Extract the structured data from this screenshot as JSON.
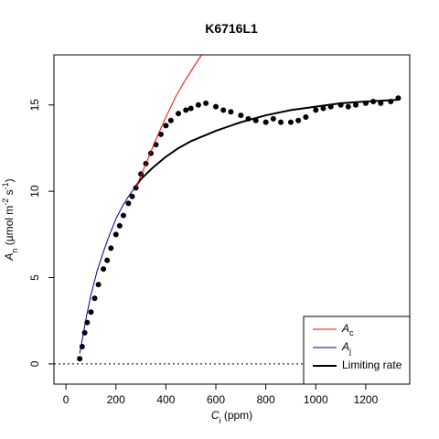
{
  "chart_data": {
    "type": "scatter",
    "title": "K6716L1",
    "xlabel_parts": [
      "C",
      "i",
      " (ppm)"
    ],
    "ylabel_parts": [
      "A",
      "n",
      " (µmol m",
      "-2",
      " s",
      "-1",
      ")"
    ],
    "xlim": [
      -48,
      1376
    ],
    "ylim": [
      -1.17,
      17.9
    ],
    "xticks": [
      0,
      200,
      400,
      600,
      800,
      1000,
      1200
    ],
    "yticks": [
      0,
      5,
      10,
      15
    ],
    "hline": 0,
    "legend": "bottom-right",
    "points": {
      "color": "#000000",
      "x": [
        55,
        65,
        75,
        85,
        100,
        115,
        130,
        150,
        165,
        180,
        200,
        215,
        230,
        250,
        265,
        280,
        300,
        320,
        340,
        360,
        380,
        400,
        420,
        450,
        480,
        500,
        530,
        560,
        600,
        630,
        660,
        700,
        730,
        760,
        800,
        830,
        860,
        900,
        930,
        960,
        1000,
        1030,
        1060,
        1100,
        1130,
        1160,
        1200,
        1230,
        1260,
        1300,
        1330
      ],
      "y": [
        0.3,
        1.0,
        1.8,
        2.4,
        3.0,
        3.8,
        4.6,
        5.5,
        6.0,
        6.7,
        7.5,
        8.0,
        8.6,
        9.3,
        9.7,
        10.2,
        11.0,
        11.6,
        12.2,
        12.7,
        13.3,
        13.8,
        14.1,
        14.5,
        14.7,
        14.8,
        15.0,
        15.1,
        14.9,
        14.7,
        14.6,
        14.4,
        14.2,
        14.1,
        14.0,
        14.2,
        14.0,
        14.0,
        14.1,
        14.3,
        14.7,
        14.8,
        14.9,
        15.0,
        14.9,
        15.0,
        15.1,
        15.2,
        15.1,
        15.2,
        15.4
      ]
    },
    "series": [
      {
        "name": "A",
        "subscript": "c",
        "color": "#ff0000",
        "width": 1,
        "x": [
          280,
          320,
          360,
          400,
          440,
          480,
          520,
          560
        ],
        "values": [
          10.2,
          11.6,
          13.0,
          14.3,
          15.5,
          16.5,
          17.4,
          18.3
        ]
      },
      {
        "name": "A",
        "subscript": "j",
        "color": "#00008b",
        "width": 1,
        "x": [
          55,
          80,
          100,
          125,
          150,
          175,
          200,
          225,
          250,
          280
        ],
        "values": [
          0.6,
          2.6,
          4.0,
          5.4,
          6.5,
          7.5,
          8.4,
          9.1,
          9.7,
          10.3
        ]
      },
      {
        "name": "Limiting rate",
        "color": "#000000",
        "width": 2,
        "x": [
          280,
          300,
          350,
          400,
          450,
          500,
          600,
          700,
          800,
          900,
          1000,
          1100,
          1200,
          1330
        ],
        "values": [
          10.3,
          10.7,
          11.4,
          12.0,
          12.5,
          12.9,
          13.5,
          14.0,
          14.4,
          14.7,
          14.9,
          15.1,
          15.2,
          15.3
        ]
      }
    ]
  }
}
